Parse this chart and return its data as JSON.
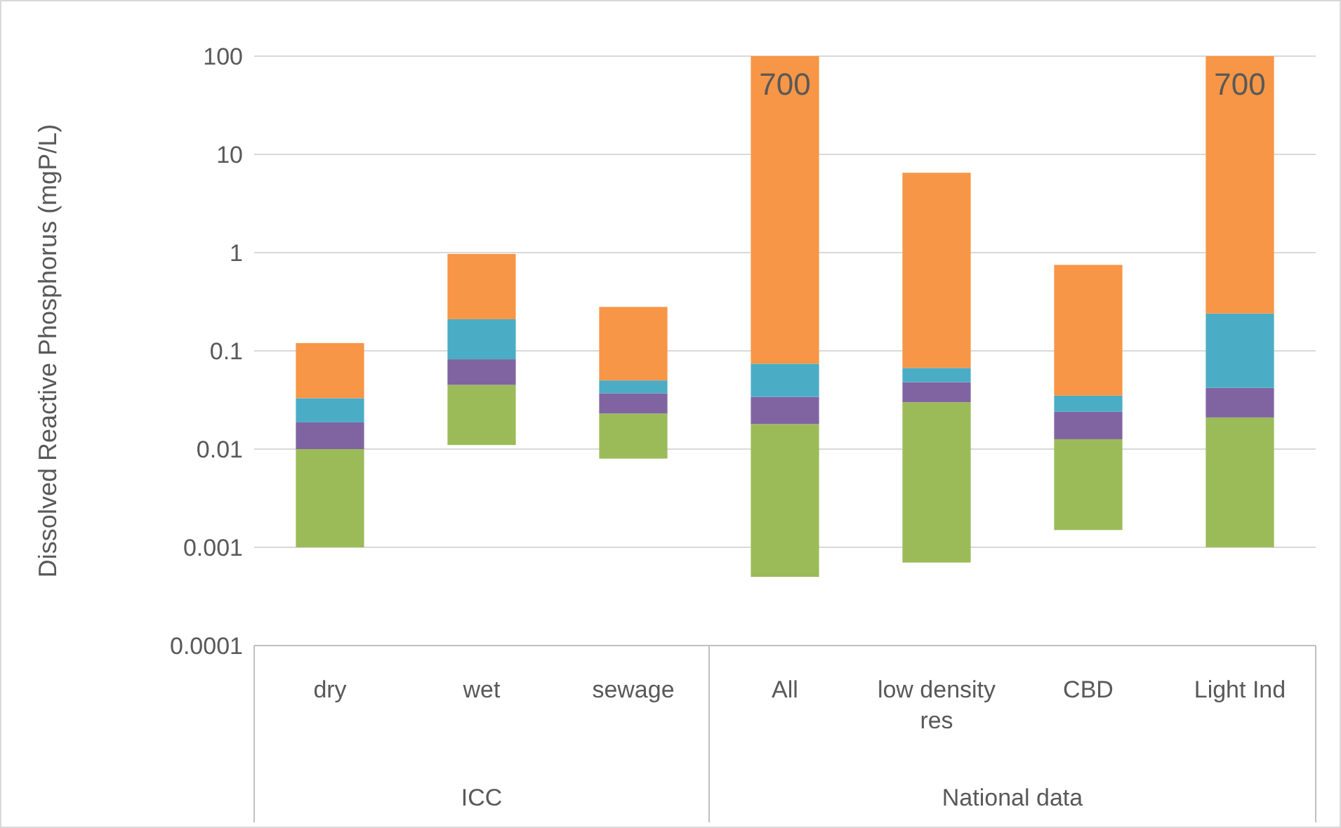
{
  "chart_data": {
    "type": "bar",
    "ylabel": "Dissolved Reactive Phosphorus (mgP/L)",
    "log": true,
    "grid": "y",
    "categories": [
      "dry",
      "wet",
      "sewage",
      "All",
      "low density res",
      "CBD",
      "Light Ind"
    ],
    "series": [
      {
        "color": "#9bbb59",
        "base": [
          0.001,
          0.011,
          0.008,
          0.0005,
          0.0007,
          0.0015,
          0.001
        ],
        "values": [
          0.009,
          0.034,
          0.015,
          0.0175,
          0.0293,
          0.0111,
          0.02
        ]
      },
      {
        "color": "#8064a2",
        "base": [
          0.01,
          0.045,
          0.023,
          0.018,
          0.03,
          0.0126,
          0.021
        ],
        "values": [
          0.0087,
          0.037,
          0.014,
          0.016,
          0.018,
          0.0114,
          0.021
        ]
      },
      {
        "color": "#4bacc6",
        "base": [
          0.0187,
          0.082,
          0.037,
          0.034,
          0.048,
          0.024,
          0.042
        ],
        "values": [
          0.0143,
          0.128,
          0.013,
          0.04,
          0.019,
          0.011,
          0.198
        ]
      },
      {
        "color": "#f79646",
        "base": [
          0.033,
          0.21,
          0.05,
          0.074,
          0.067,
          0.035,
          0.24
        ],
        "values": [
          0.087,
          0.76,
          0.23,
          99.926,
          6.433,
          0.715,
          99.76
        ]
      }
    ],
    "ylim": [
      0.0001,
      100
    ],
    "yticks": [
      0.0001,
      0.001,
      0.01,
      0.1,
      1,
      10,
      100
    ],
    "annotations": [
      "700",
      "700",
      "ICC",
      "National data"
    ]
  }
}
